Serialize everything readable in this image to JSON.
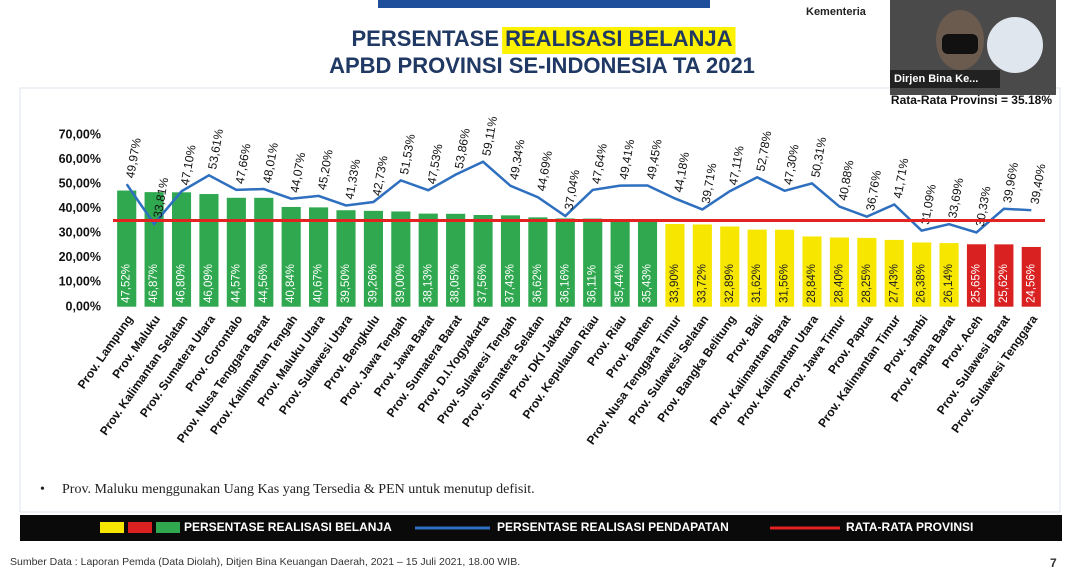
{
  "header": {
    "ministry": "Kementeria",
    "title_parts": [
      "PERSENTASE ",
      "REALISASI BELANJA"
    ],
    "subtitle": "APBD PROVINSI SE-INDONESIA TA 2021"
  },
  "video": {
    "name": "Dirjen Bina Ke..."
  },
  "chart_data": {
    "type": "bar",
    "annotation": "Rata-Rata Provinsi = 35.18%",
    "categories": [
      "Prov. Lampung",
      "Prov. Maluku",
      "Prov. Kalimantan Selatan",
      "Prov. Sumatera Utara",
      "Prov. Gorontalo",
      "Prov. Nusa Tenggara Barat",
      "Prov. Kalimantan Tengah",
      "Prov. Maluku Utara",
      "Prov. Sulawesi Utara",
      "Prov. Bengkulu",
      "Prov. Jawa Tengah",
      "Prov. Jawa Barat",
      "Prov. Sumatera Barat",
      "Prov. D.I.Yogyakarta",
      "Prov. Sulawesi Tengah",
      "Prov. Sumatera Selatan",
      "Prov. DKI Jakarta",
      "Prov. Kepulauan Riau",
      "Prov. Riau",
      "Prov. Banten",
      "Prov. Nusa Tenggara Timur",
      "Prov. Sulawesi Selatan",
      "Prov. Bangka Belitung",
      "Prov. Bali",
      "Prov. Kalimantan Barat",
      "Prov. Kalimantan Utara",
      "Prov. Jawa Timur",
      "Prov. Papua",
      "Prov. Kalimantan Timur",
      "Prov. Jambi",
      "Prov. Papua Barat",
      "Prov. Aceh",
      "Prov. Sulawesi Barat",
      "Prov. Sulawesi Tenggara"
    ],
    "series": [
      {
        "name": "PERSENTASE REALISASI BELANJA",
        "type": "bar",
        "colors": [
          "#2fa84f",
          "#2fa84f",
          "#2fa84f",
          "#2fa84f",
          "#2fa84f",
          "#2fa84f",
          "#2fa84f",
          "#2fa84f",
          "#2fa84f",
          "#2fa84f",
          "#2fa84f",
          "#2fa84f",
          "#2fa84f",
          "#2fa84f",
          "#2fa84f",
          "#2fa84f",
          "#2fa84f",
          "#2fa84f",
          "#2fa84f",
          "#2fa84f",
          "#f7e600",
          "#f7e600",
          "#f7e600",
          "#f7e600",
          "#f7e600",
          "#f7e600",
          "#f7e600",
          "#f7e600",
          "#f7e600",
          "#f7e600",
          "#f7e600",
          "#d92121",
          "#d92121",
          "#d92121"
        ],
        "values": [
          47.52,
          46.87,
          46.8,
          46.09,
          44.57,
          44.56,
          40.84,
          40.67,
          39.5,
          39.26,
          39.0,
          38.13,
          38.05,
          37.56,
          37.43,
          36.62,
          36.16,
          36.11,
          35.44,
          35.43,
          33.9,
          33.72,
          32.89,
          31.62,
          31.56,
          28.84,
          28.4,
          28.25,
          27.43,
          26.38,
          26.14,
          25.65,
          25.62,
          24.56
        ],
        "value_labels": [
          "47,52%",
          "46,87%",
          "46,80%",
          "46,09%",
          "44,57%",
          "44,56%",
          "40,84%",
          "40,67%",
          "39,50%",
          "39,26%",
          "39,00%",
          "38,13%",
          "38,05%",
          "37,56%",
          "37,43%",
          "36,62%",
          "36,16%",
          "36,11%",
          "35,44%",
          "35,43%",
          "33,90%",
          "33,72%",
          "32,89%",
          "31,62%",
          "31,56%",
          "28,84%",
          "28,40%",
          "28,25%",
          "27,43%",
          "26,38%",
          "26,14%",
          "25,65%",
          "25,62%",
          "24,56%"
        ]
      },
      {
        "name": "PERSENTASE REALISASI PENDAPATAN",
        "type": "line",
        "color": "#2e6fbf",
        "values": [
          49.97,
          33.81,
          47.1,
          53.61,
          47.66,
          48.01,
          44.07,
          45.2,
          41.33,
          42.73,
          51.53,
          47.53,
          53.86,
          59.11,
          49.34,
          44.69,
          37.04,
          47.64,
          49.41,
          49.45,
          44.18,
          39.71,
          47.11,
          52.78,
          47.3,
          50.31,
          40.88,
          36.76,
          41.71,
          31.09,
          33.69,
          30.33,
          39.96,
          39.4
        ],
        "value_labels": [
          "49,97%",
          "33,81%",
          "47,10%",
          "53,61%",
          "47,66%",
          "48,01%",
          "44,07%",
          "45,20%",
          "41,33%",
          "42,73%",
          "51,53%",
          "47,53%",
          "53,86%",
          "59,11%",
          "49,34%",
          "44,69%",
          "37,04%",
          "47,64%",
          "49,41%",
          "49,45%",
          "44,18%",
          "39,71%",
          "47,11%",
          "52,78%",
          "47,30%",
          "50,31%",
          "40,88%",
          "36,76%",
          "41,71%",
          "31,09%",
          "33,69%",
          "30,33%",
          "39,96%",
          "39,40%"
        ]
      },
      {
        "name": "RATA-RATA PROVINSI",
        "type": "hline",
        "color": "#e32222",
        "value": 35.18
      }
    ],
    "ylim": [
      0,
      70
    ],
    "yticks": [
      {
        "value": 0,
        "label": "0,00%"
      },
      {
        "value": 10,
        "label": "10,00%"
      },
      {
        "value": 20,
        "label": "20,00%"
      },
      {
        "value": 30,
        "label": "30,00%"
      },
      {
        "value": 40,
        "label": "40,00%"
      },
      {
        "value": 50,
        "label": "50,00%"
      },
      {
        "value": 60,
        "label": "60,00%"
      },
      {
        "value": 70,
        "label": "70,00%"
      }
    ],
    "grid": false,
    "note": "Prov. Maluku menggunakan Uang Kas yang Tersedia & PEN untuk menutup defisit."
  },
  "footer": {
    "source": "Sumber Data : Laporan Pemda (Data Diolah), Ditjen Bina Keuangan Daerah, 2021 – 15 Juli 2021, 18.00 WIB.",
    "page": "7"
  }
}
